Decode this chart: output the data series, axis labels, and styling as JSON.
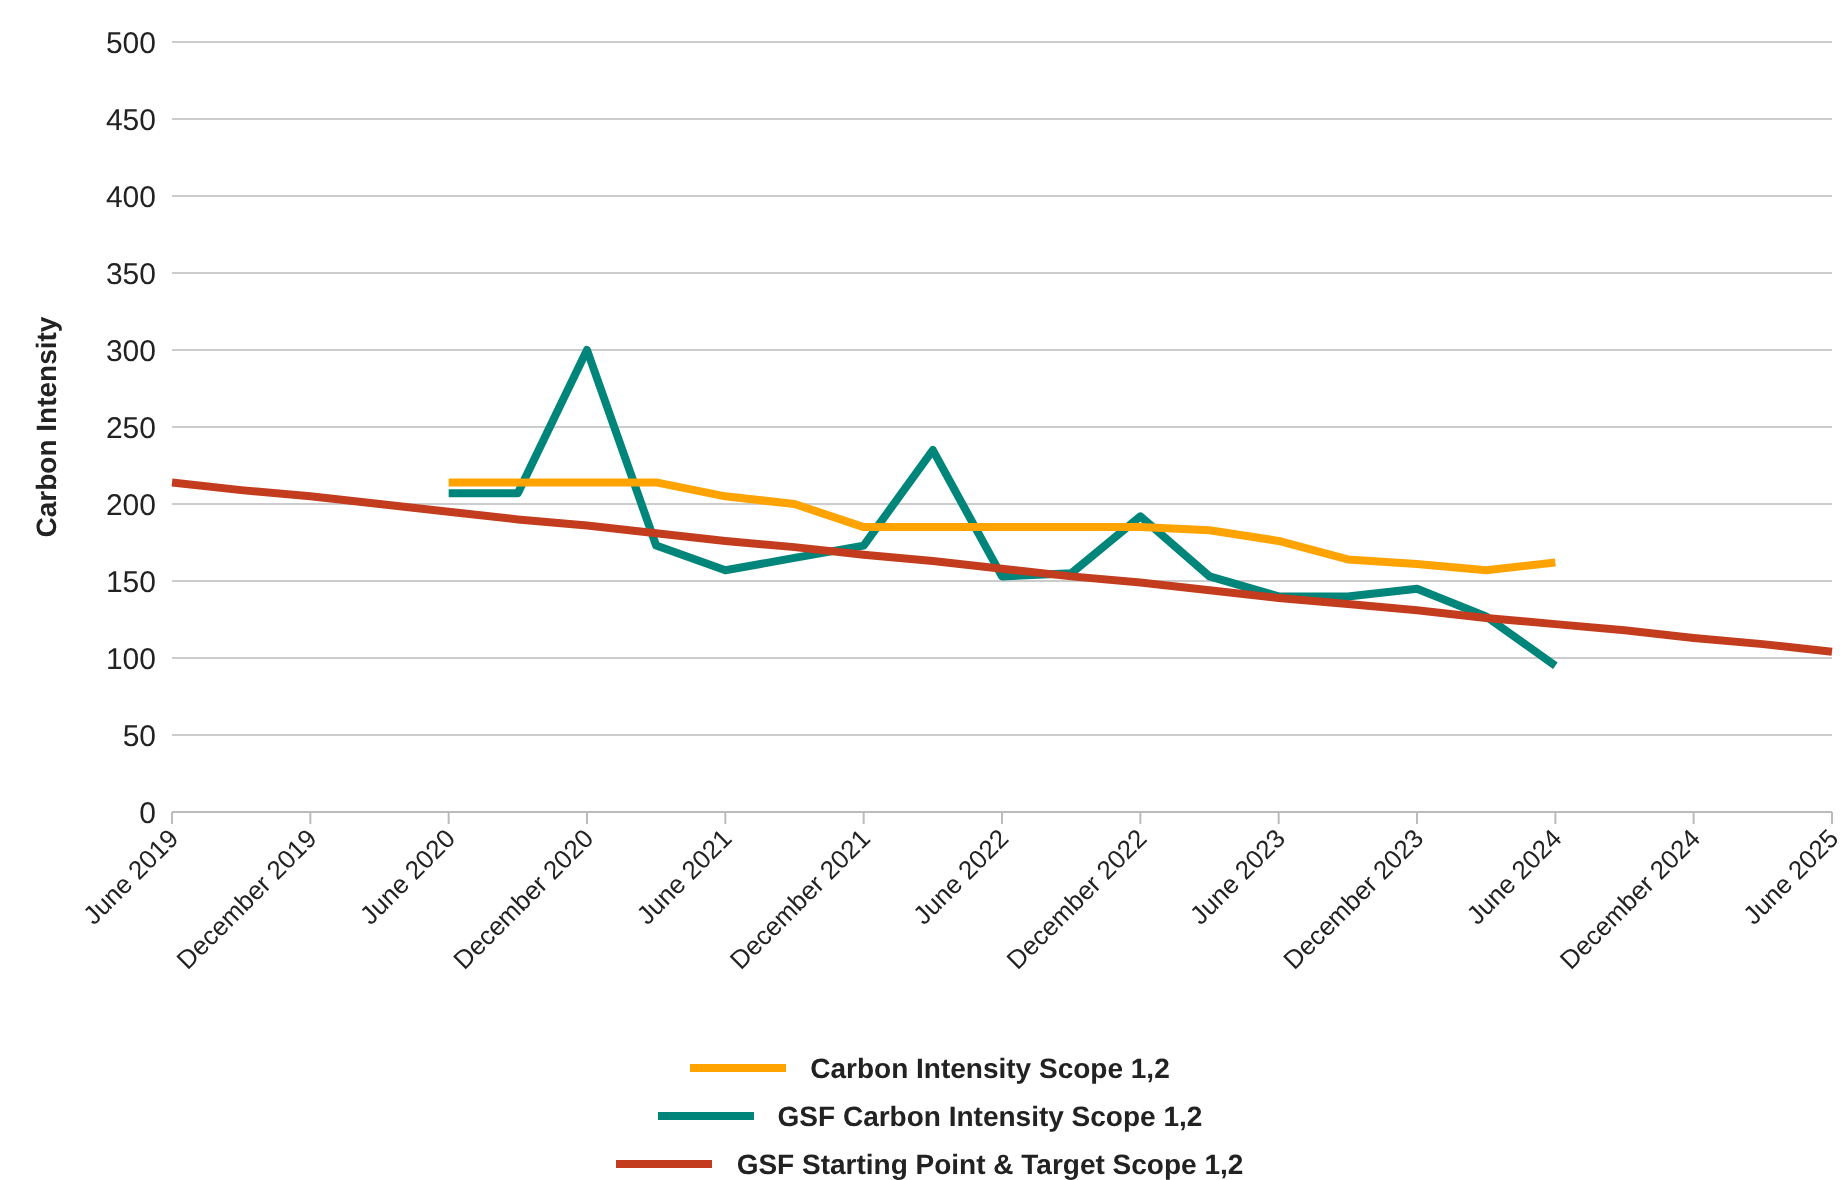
{
  "chart_data": {
    "type": "line",
    "ylabel": "Carbon Intensity",
    "categories": [
      "June 2019",
      null,
      "December 2019",
      null,
      "June 2020",
      null,
      "December 2020",
      null,
      "June 2021",
      null,
      "December 2021",
      null,
      "June 2022",
      null,
      "December 2022",
      null,
      "June 2023",
      null,
      "December 2023",
      null,
      "June 2024",
      null,
      "December 2024",
      null,
      "June 2025"
    ],
    "series": [
      {
        "name": "GSF Carbon Intensity Scope 1,2",
        "color": "#00857a",
        "values": [
          null,
          null,
          null,
          null,
          207,
          207,
          300,
          173,
          157,
          165,
          173,
          235,
          153,
          155,
          192,
          153,
          140,
          140,
          145,
          127,
          95,
          null,
          null,
          null,
          null
        ]
      },
      {
        "name": "Carbon Intensity Scope 1,2",
        "color": "#ffa300",
        "values": [
          null,
          null,
          null,
          null,
          214,
          214,
          214,
          214,
          205,
          200,
          185,
          185,
          185,
          185,
          185,
          183,
          176,
          164,
          161,
          157,
          162,
          null,
          null,
          null,
          null
        ]
      },
      {
        "name": "GSF Starting Point & Target Scope 1,2",
        "color": "#c43c1e",
        "values": [
          214,
          209,
          205,
          200,
          195,
          190,
          186,
          181,
          176,
          172,
          167,
          163,
          158,
          153,
          149,
          144,
          139,
          135,
          131,
          126,
          122,
          118,
          113,
          109,
          104
        ]
      }
    ],
    "ylim": [
      0,
      500
    ],
    "yticks": [
      0,
      50,
      100,
      150,
      200,
      250,
      300,
      350,
      400,
      450,
      500
    ],
    "grid": "y",
    "legend": "bottom",
    "marker": "none",
    "line_style": "solid"
  }
}
